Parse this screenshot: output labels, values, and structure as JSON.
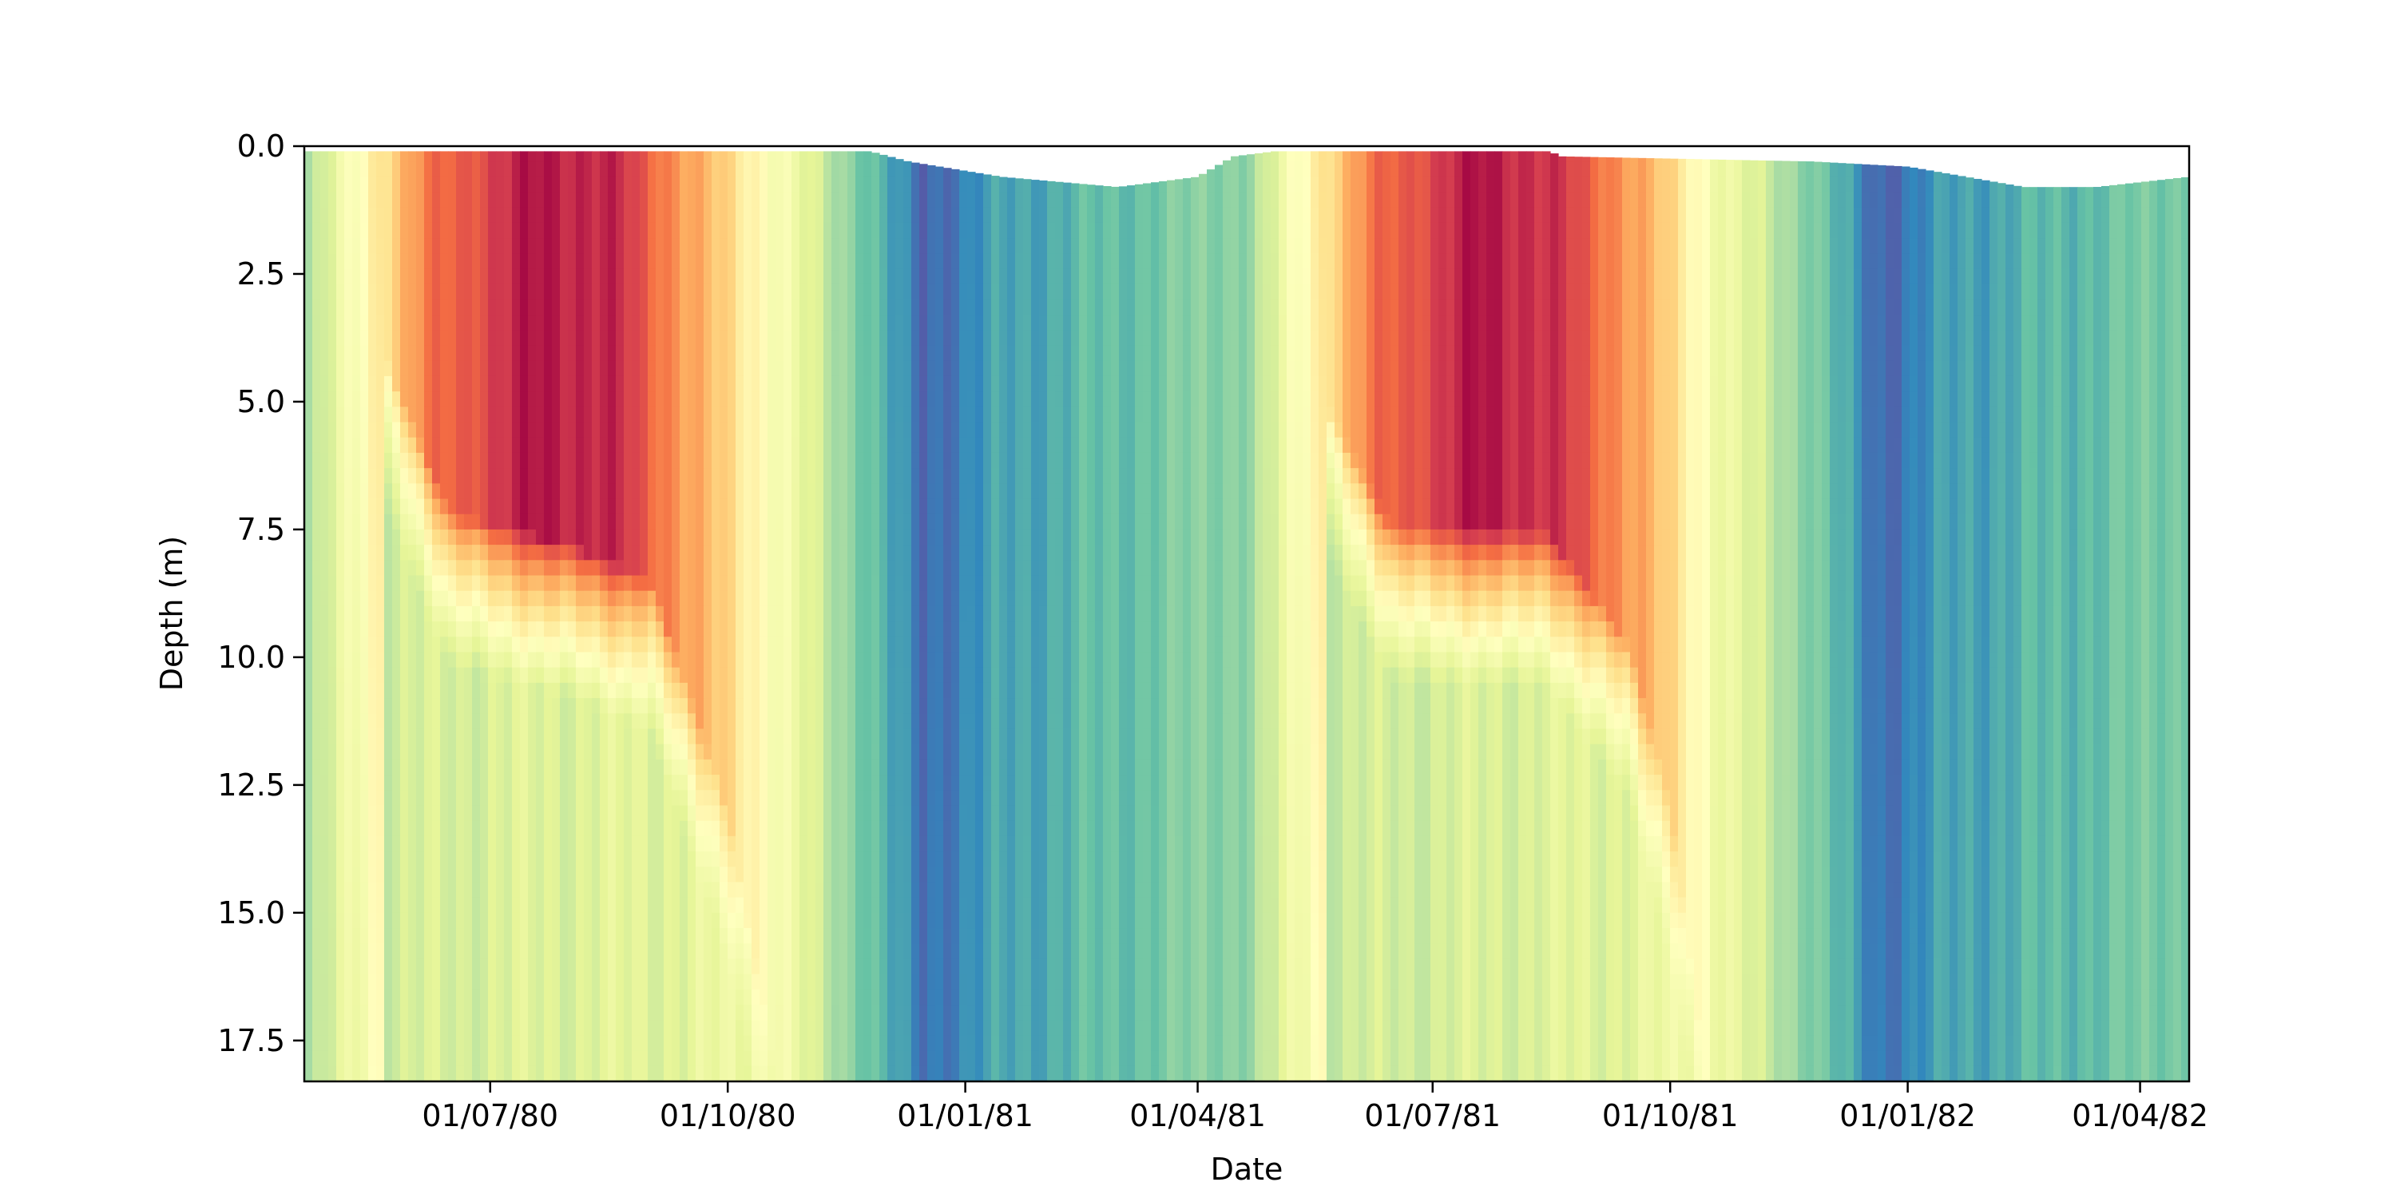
{
  "chart_data": {
    "type": "heatmap",
    "title": "",
    "xlabel": "Date",
    "ylabel": "Depth (m)",
    "xlim": [
      "1980-04-20",
      "1982-04-20"
    ],
    "ylim": [
      18.3,
      0.0
    ],
    "y_inverted": true,
    "grid": false,
    "legend": "none",
    "colormap": "Spectral_r",
    "color_range_note": "red = warm surface water in summer, blue = cold water in winter",
    "x_ticks": [
      {
        "value": "1980-07-01",
        "label": "01/07/80"
      },
      {
        "value": "1980-10-01",
        "label": "01/10/80"
      },
      {
        "value": "1981-01-01",
        "label": "01/01/81"
      },
      {
        "value": "1981-04-01",
        "label": "01/04/81"
      },
      {
        "value": "1981-07-01",
        "label": "01/07/81"
      },
      {
        "value": "1981-10-01",
        "label": "01/10/81"
      },
      {
        "value": "1982-01-01",
        "label": "01/01/82"
      },
      {
        "value": "1982-04-01",
        "label": "01/04/82"
      }
    ],
    "y_ticks": [
      {
        "value": 0.0,
        "label": "0.0"
      },
      {
        "value": 2.5,
        "label": "2.5"
      },
      {
        "value": 5.0,
        "label": "5.0"
      },
      {
        "value": 7.5,
        "label": "7.5"
      },
      {
        "value": 10.0,
        "label": "10.0"
      },
      {
        "value": 12.5,
        "label": "12.5"
      },
      {
        "value": 15.0,
        "label": "15.0"
      },
      {
        "value": 17.5,
        "label": "17.5"
      }
    ],
    "surface_level": [
      {
        "date": "1980-04-20",
        "depth": 0.1
      },
      {
        "date": "1980-11-25",
        "depth": 0.1
      },
      {
        "date": "1980-12-10",
        "depth": 0.3
      },
      {
        "date": "1981-01-15",
        "depth": 0.6
      },
      {
        "date": "1981-03-01",
        "depth": 0.8
      },
      {
        "date": "1981-04-01",
        "depth": 0.6
      },
      {
        "date": "1981-04-15",
        "depth": 0.2
      },
      {
        "date": "1981-05-01",
        "depth": 0.1
      },
      {
        "date": "1981-08-15",
        "depth": 0.1
      },
      {
        "date": "1981-08-20",
        "depth": 0.2
      },
      {
        "date": "1981-11-25",
        "depth": 0.3
      },
      {
        "date": "1982-01-01",
        "depth": 0.4
      },
      {
        "date": "1982-02-15",
        "depth": 0.8
      },
      {
        "date": "1982-03-15",
        "depth": 0.8
      },
      {
        "date": "1982-04-20",
        "depth": 0.6
      }
    ],
    "thermocline_depth": [
      {
        "date": "1980-05-20",
        "depth": 4.0
      },
      {
        "date": "1980-06-15",
        "depth": 7.2
      },
      {
        "date": "1980-08-01",
        "depth": 7.8
      },
      {
        "date": "1980-09-01",
        "depth": 8.5
      },
      {
        "date": "1980-10-01",
        "depth": 13.0
      },
      {
        "date": "1980-10-20",
        "depth": 18.3
      },
      {
        "date": "1981-05-20",
        "depth": 5.0
      },
      {
        "date": "1981-06-15",
        "depth": 7.5
      },
      {
        "date": "1981-08-15",
        "depth": 7.6
      },
      {
        "date": "1981-09-15",
        "depth": 9.8
      },
      {
        "date": "1981-10-01",
        "depth": 13.0
      },
      {
        "date": "1981-10-15",
        "depth": 18.3
      }
    ],
    "surface_temperature_profile": [
      {
        "date": "1980-04-20",
        "level": 0.28
      },
      {
        "date": "1980-05-15",
        "level": 0.55
      },
      {
        "date": "1980-06-10",
        "level": 0.8
      },
      {
        "date": "1980-07-20",
        "level": 0.97
      },
      {
        "date": "1980-08-20",
        "level": 0.92
      },
      {
        "date": "1980-09-15",
        "level": 0.72
      },
      {
        "date": "1980-10-20",
        "level": 0.48
      },
      {
        "date": "1980-11-20",
        "level": 0.25
      },
      {
        "date": "1980-12-15",
        "level": 0.04
      },
      {
        "date": "1981-01-15",
        "level": 0.14
      },
      {
        "date": "1981-03-01",
        "level": 0.2
      },
      {
        "date": "1981-04-20",
        "level": 0.27
      },
      {
        "date": "1981-05-15",
        "level": 0.55
      },
      {
        "date": "1981-06-10",
        "level": 0.8
      },
      {
        "date": "1981-07-20",
        "level": 0.97
      },
      {
        "date": "1981-08-20",
        "level": 0.9
      },
      {
        "date": "1981-09-20",
        "level": 0.7
      },
      {
        "date": "1981-10-20",
        "level": 0.45
      },
      {
        "date": "1981-11-25",
        "level": 0.25
      },
      {
        "date": "1981-12-20",
        "level": 0.04
      },
      {
        "date": "1982-01-20",
        "level": 0.14
      },
      {
        "date": "1982-04-20",
        "level": 0.24
      }
    ],
    "deep_temperature_profile": [
      {
        "date": "1980-04-20",
        "level": 0.28
      },
      {
        "date": "1980-05-15",
        "level": 0.36
      },
      {
        "date": "1980-07-01",
        "level": 0.38
      },
      {
        "date": "1980-09-15",
        "level": 0.4
      },
      {
        "date": "1980-10-20",
        "level": 0.45
      },
      {
        "date": "1980-11-20",
        "level": 0.25
      },
      {
        "date": "1980-12-15",
        "level": 0.12
      },
      {
        "date": "1981-01-15",
        "level": 0.16
      },
      {
        "date": "1981-03-01",
        "level": 0.21
      },
      {
        "date": "1981-04-20",
        "level": 0.27
      },
      {
        "date": "1981-05-15",
        "level": 0.35
      },
      {
        "date": "1981-07-01",
        "level": 0.37
      },
      {
        "date": "1981-09-15",
        "level": 0.4
      },
      {
        "date": "1981-10-15",
        "level": 0.45
      },
      {
        "date": "1981-11-25",
        "level": 0.25
      },
      {
        "date": "1981-12-20",
        "level": 0.14
      },
      {
        "date": "1982-01-20",
        "level": 0.17
      },
      {
        "date": "1982-04-20",
        "level": 0.24
      }
    ]
  }
}
